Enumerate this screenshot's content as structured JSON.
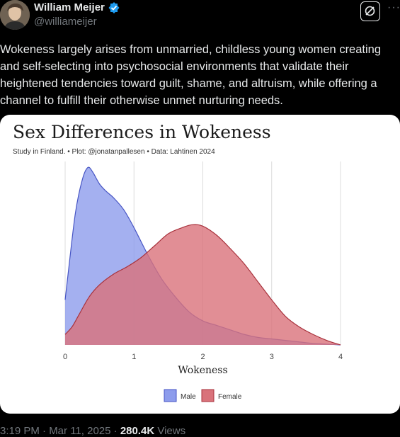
{
  "post": {
    "author_name": "William Meijer",
    "author_handle": "@williameijer",
    "text": "Wokeness largely arises from unmarried, childless young women creating and self-selecting into psychosocial environments that validate their heightened tendencies toward guilt, shame, and altruism, while offering a channel to fulfill their otherwise unmet nurturing needs.",
    "timestamp": "3:19 PM · Mar 11, 2025 · ",
    "views_count": "280.4K",
    "views_label": " Views",
    "more_icon": "···"
  },
  "colors": {
    "verified": "#1d9bf0",
    "male_fill": "#8d9cec",
    "male_stroke": "#4755c4",
    "female_fill": "#d9727a",
    "female_stroke": "#a8323c",
    "overlap_fill": "#9a5078"
  },
  "chart_data": {
    "type": "area",
    "title": "Sex Differences in Wokeness",
    "subtitle": "Study in Finland. • Plot: @jonatanpallesen • Data: Lahtinen 2024",
    "xlabel": "Wokeness",
    "ylabel": "",
    "xlim": [
      0,
      4
    ],
    "xticks": [
      "0",
      "1",
      "2",
      "3",
      "4"
    ],
    "grid": "vertical",
    "legend_position": "bottom",
    "series": [
      {
        "name": "Male",
        "x": [
          0,
          0.05,
          0.15,
          0.25,
          0.33,
          0.4,
          0.5,
          0.6,
          0.7,
          0.85,
          1.0,
          1.2,
          1.4,
          1.6,
          1.8,
          2.0,
          2.2,
          2.4,
          2.6,
          2.8,
          3.0,
          3.2,
          3.4,
          3.6,
          3.8,
          4.0
        ],
        "y": [
          0.3,
          0.5,
          0.88,
          1.1,
          1.18,
          1.15,
          1.07,
          1.02,
          0.98,
          0.9,
          0.78,
          0.6,
          0.44,
          0.32,
          0.22,
          0.16,
          0.13,
          0.1,
          0.07,
          0.05,
          0.04,
          0.03,
          0.02,
          0.01,
          0.005,
          0.0
        ]
      },
      {
        "name": "Female",
        "x": [
          0,
          0.1,
          0.2,
          0.35,
          0.5,
          0.7,
          0.9,
          1.1,
          1.3,
          1.5,
          1.7,
          1.85,
          2.0,
          2.2,
          2.4,
          2.6,
          2.8,
          3.0,
          3.2,
          3.4,
          3.6,
          3.8,
          4.0
        ],
        "y": [
          0.07,
          0.12,
          0.2,
          0.32,
          0.4,
          0.47,
          0.52,
          0.58,
          0.66,
          0.74,
          0.78,
          0.8,
          0.79,
          0.73,
          0.64,
          0.54,
          0.42,
          0.3,
          0.19,
          0.12,
          0.07,
          0.03,
          0.0
        ]
      }
    ]
  }
}
